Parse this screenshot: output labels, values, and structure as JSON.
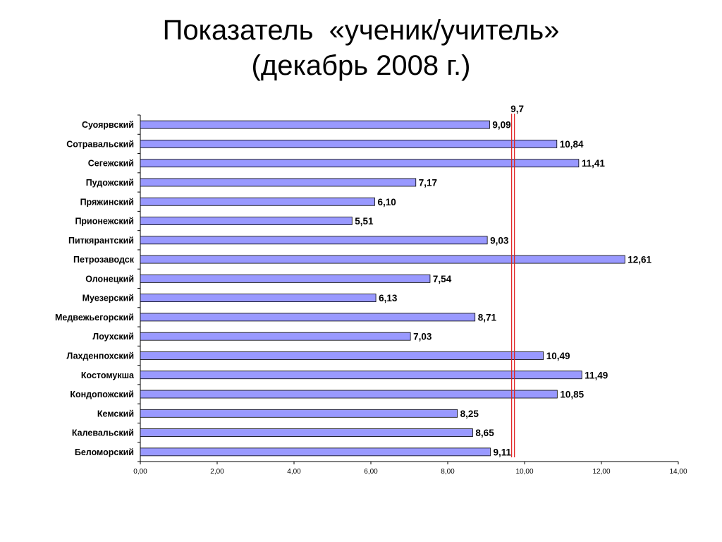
{
  "slide": {
    "title_line1": "Показатель  «ученик/учитель»",
    "title_line2": "(декабрь 2008 г.)"
  },
  "chart_data": {
    "type": "bar",
    "orientation": "horizontal",
    "title": "Показатель  «ученик/учитель» (декабрь 2008 г.)",
    "categories": [
      "Суоярвский",
      "Сотравальский",
      "Сегежский",
      "Пудожский",
      "Пряжинский",
      "Прионежский",
      "Питкярантский",
      "Петрозаводск",
      "Олонецкий",
      "Муезерский",
      "Медвежьегорский",
      "Лоухский",
      "Лахденпохский",
      "Костомукша",
      "Кондопожский",
      "Кемский",
      "Калевальский",
      "Беломорский"
    ],
    "values": [
      9.09,
      10.84,
      11.41,
      7.17,
      6.1,
      5.51,
      9.03,
      12.61,
      7.54,
      6.13,
      8.71,
      7.03,
      10.49,
      11.49,
      10.85,
      8.25,
      8.65,
      9.11
    ],
    "value_labels": [
      "9,09",
      "10,84",
      "11,41",
      "7,17",
      "6,10",
      "5,51",
      "9,03",
      "12,61",
      "7,54",
      "6,13",
      "8,71",
      "7,03",
      "10,49",
      "11,49",
      "10,85",
      "8,25",
      "8,65",
      "9,11"
    ],
    "xlim": [
      0,
      14
    ],
    "x_ticks": [
      0,
      2,
      4,
      6,
      8,
      10,
      12,
      14
    ],
    "x_tick_labels": [
      "0,00",
      "2,00",
      "4,00",
      "6,00",
      "8,00",
      "10,00",
      "12,00",
      "14,00"
    ],
    "xlabel": "",
    "ylabel": "",
    "reference_line": {
      "value": 9.7,
      "label": "9,7",
      "color": "#e02020"
    },
    "grid": false,
    "legend": "none",
    "bar_color": "#9999ff",
    "bar_edge_color": "#000000"
  }
}
